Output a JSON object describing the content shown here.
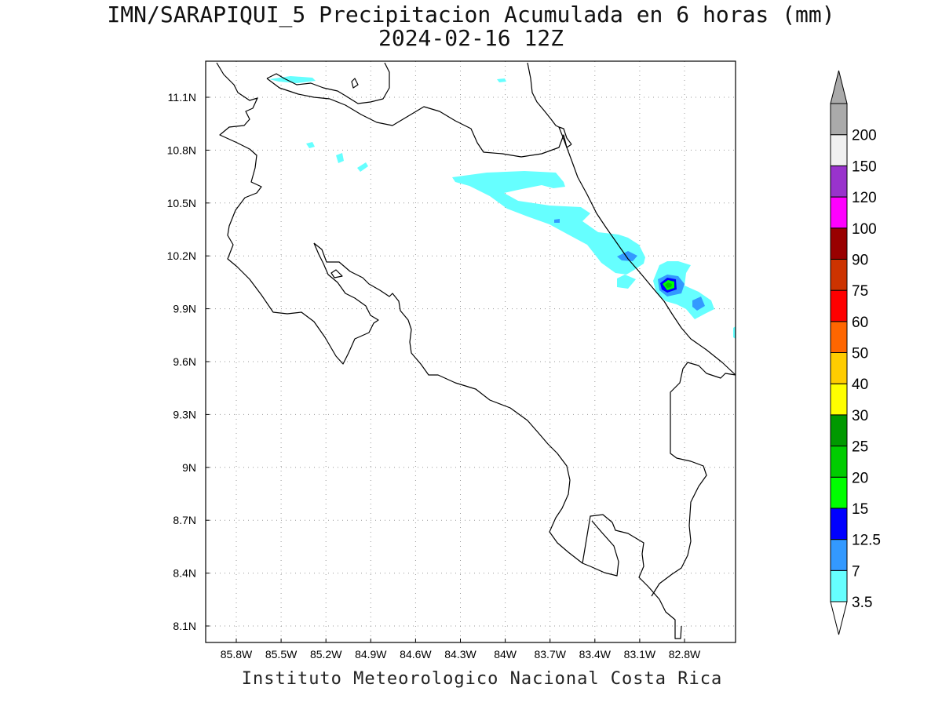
{
  "title": {
    "line1": "IMN/SARAPIQUI_5 Precipitacion Acumulada en 6 horas (mm)",
    "line2": "2024-02-16 12Z"
  },
  "footer": "Instituto Meteorologico Nacional Costa Rica",
  "map": {
    "lon_range": [
      -86.0,
      -82.9
    ],
    "lat_range": [
      8.0,
      11.3
    ],
    "lon_ticks": [
      {
        "value": -85.8,
        "label": "85.8W"
      },
      {
        "value": -85.5,
        "label": "85.5W"
      },
      {
        "value": -85.2,
        "label": "85.2W"
      },
      {
        "value": -84.9,
        "label": "84.9W"
      },
      {
        "value": -84.6,
        "label": "84.6W"
      },
      {
        "value": -84.3,
        "label": "84.3W"
      },
      {
        "value": -84.0,
        "label": "84W"
      },
      {
        "value": -83.7,
        "label": "83.7W"
      },
      {
        "value": -83.4,
        "label": "83.4W"
      },
      {
        "value": -83.1,
        "label": "83.1W"
      },
      {
        "value": -82.8,
        "label": "82.8W"
      }
    ],
    "lat_ticks": [
      {
        "value": 11.1,
        "label": "11.1N"
      },
      {
        "value": 10.8,
        "label": "10.8N"
      },
      {
        "value": 10.5,
        "label": "10.5N"
      },
      {
        "value": 10.2,
        "label": "10.2N"
      },
      {
        "value": 9.9,
        "label": "9.9N"
      },
      {
        "value": 9.6,
        "label": "9.6N"
      },
      {
        "value": 9.3,
        "label": "9.3N"
      },
      {
        "value": 9.0,
        "label": "9N"
      },
      {
        "value": 8.7,
        "label": "8.7N"
      },
      {
        "value": 8.4,
        "label": "8.4N"
      },
      {
        "value": 8.1,
        "label": "8.1N"
      }
    ],
    "grid": "dotted"
  },
  "colorbar": {
    "levels": [
      {
        "label": "3.5",
        "color": "#66ffff"
      },
      {
        "label": "7",
        "color": "#3399ff"
      },
      {
        "label": "12.5",
        "color": "#0000ff"
      },
      {
        "label": "15",
        "color": "#00ff00"
      },
      {
        "label": "20",
        "color": "#00cc00"
      },
      {
        "label": "25",
        "color": "#009900"
      },
      {
        "label": "30",
        "color": "#ffff00"
      },
      {
        "label": "40",
        "color": "#ffcc00"
      },
      {
        "label": "50",
        "color": "#ff6600"
      },
      {
        "label": "60",
        "color": "#ff0000"
      },
      {
        "label": "75",
        "color": "#cc3300"
      },
      {
        "label": "90",
        "color": "#990000"
      },
      {
        "label": "100",
        "color": "#ff00ff"
      },
      {
        "label": "120",
        "color": "#9933cc"
      },
      {
        "label": "150",
        "color": "#f0f0f0"
      },
      {
        "label": "200",
        "color": "#aaaaaa"
      }
    ],
    "under_color": "#ffffff",
    "over_color": "#aaaaaa"
  }
}
